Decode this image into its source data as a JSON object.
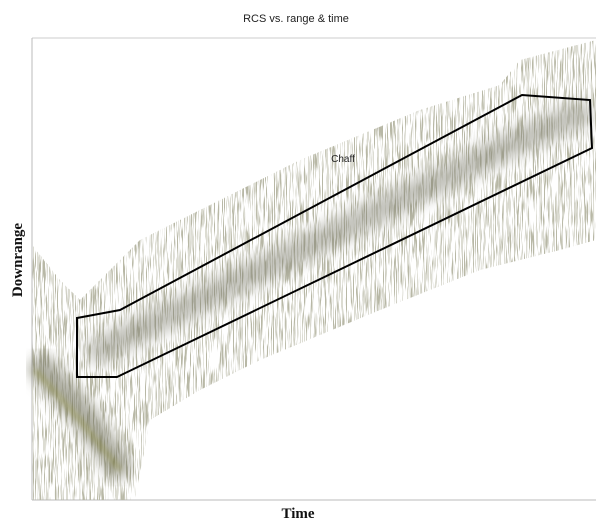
{
  "chart_data": {
    "type": "image",
    "title": "RCS  vs. range & time",
    "x_label": "Time",
    "y_label": "Downrange",
    "annotation": "Chaff"
  }
}
